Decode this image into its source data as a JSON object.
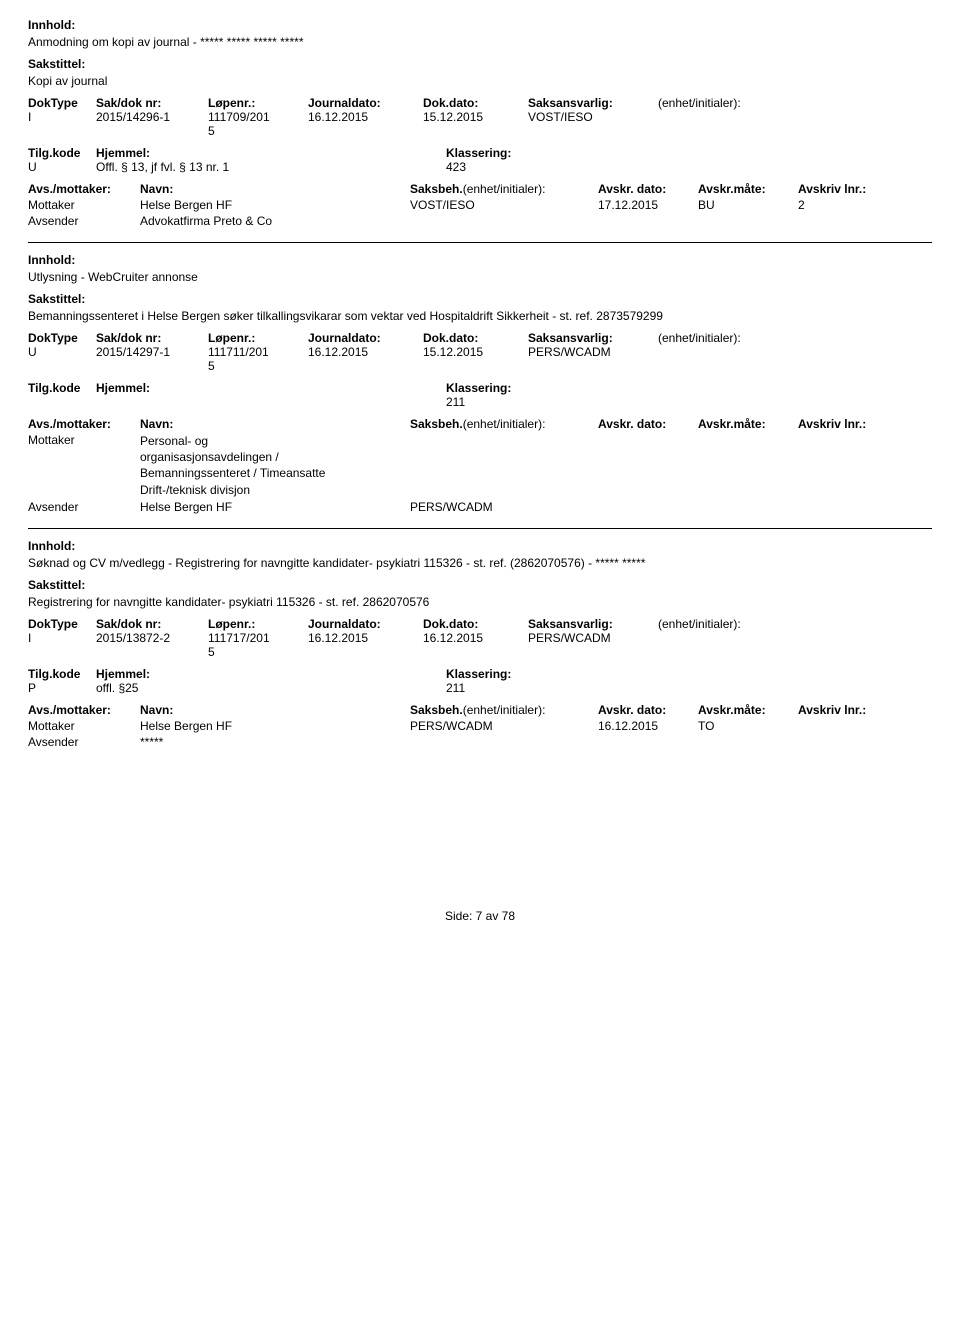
{
  "labels": {
    "innhold": "Innhold:",
    "sakstittel": "Sakstittel:",
    "doktype": "DokType",
    "sakdok": "Sak/dok nr:",
    "lopenr": "Løpenr.:",
    "journaldato": "Journaldato:",
    "dokdato": "Dok.dato:",
    "saksansvarlig": "Saksansvarlig:",
    "enhet": "(enhet/initialer):",
    "tilgkode": "Tilg.kode",
    "hjemmel": "Hjemmel:",
    "klassering": "Klassering:",
    "avsmottaker": "Avs./mottaker:",
    "navn": "Navn:",
    "saksbeh": "Saksbeh.",
    "saksbeh_enhet": "(enhet/initialer):",
    "avskr_dato": "Avskr. dato:",
    "avskr_mate": "Avskr.måte:",
    "avskr_lnr": "Avskriv lnr.:",
    "mottaker": "Mottaker",
    "avsender": "Avsender"
  },
  "records": [
    {
      "innhold": "Anmodning om kopi av journal - ***** ***** ***** *****",
      "sakstittel": "Kopi av journal",
      "doktype": "I",
      "sakdok": "2015/14296-1",
      "lopenr": "111709/2015",
      "journaldato": "16.12.2015",
      "dokdato": "15.12.2015",
      "saksansvarlig": "VOST/IESO",
      "tilgkode": "U",
      "hjemmel": "Offl. § 13, jf fvl. § 13 nr. 1",
      "klassering": "423",
      "parties": [
        {
          "role": "Mottaker",
          "name": "Helse Bergen HF",
          "saksbeh": "VOST/IESO",
          "avskr_dato": "17.12.2015",
          "avskr_mate": "BU",
          "avskr_lnr": "2"
        },
        {
          "role": "Avsender",
          "name": "Advokatfirma Preto & Co",
          "saksbeh": "",
          "avskr_dato": "",
          "avskr_mate": "",
          "avskr_lnr": ""
        }
      ]
    },
    {
      "innhold": "Utlysning - WebCruiter annonse",
      "sakstittel": "Bemanningssenteret i Helse Bergen søker tilkallingsvikarar som vektar ved Hospitaldrift Sikkerheit  - st. ref. 2873579299",
      "doktype": "U",
      "sakdok": "2015/14297-1",
      "lopenr": "111711/2015",
      "journaldato": "16.12.2015",
      "dokdato": "15.12.2015",
      "saksansvarlig": "PERS/WCADM",
      "tilgkode": "",
      "hjemmel": "",
      "klassering": "211",
      "parties": [
        {
          "role": "Mottaker",
          "name": "Personal- og\norganisasjonsavdelingen /\nBemanningssenteret / Timeansatte\nDrift-/teknisk divisjon",
          "saksbeh": "",
          "avskr_dato": "",
          "avskr_mate": "",
          "avskr_lnr": ""
        },
        {
          "role": "Avsender",
          "name": "Helse Bergen HF",
          "saksbeh": "PERS/WCADM",
          "avskr_dato": "",
          "avskr_mate": "",
          "avskr_lnr": ""
        }
      ]
    },
    {
      "innhold": "Søknad og CV m/vedlegg - Registrering for navngitte kandidater- psykiatri 115326 - st. ref. (2862070576) - ***** *****",
      "sakstittel": "Registrering for navngitte kandidater- psykiatri 115326  - st. ref. 2862070576",
      "doktype": "I",
      "sakdok": "2015/13872-2",
      "lopenr": "111717/2015",
      "journaldato": "16.12.2015",
      "dokdato": "16.12.2015",
      "saksansvarlig": "PERS/WCADM",
      "tilgkode": "P",
      "hjemmel": "offl. §25",
      "klassering": "211",
      "parties": [
        {
          "role": "Mottaker",
          "name": "Helse Bergen HF",
          "saksbeh": "PERS/WCADM",
          "avskr_dato": "16.12.2015",
          "avskr_mate": "TO",
          "avskr_lnr": ""
        },
        {
          "role": "Avsender",
          "name": "*****",
          "saksbeh": "",
          "avskr_dato": "",
          "avskr_mate": "",
          "avskr_lnr": ""
        }
      ]
    }
  ],
  "footer": "Side: 7 av 78"
}
